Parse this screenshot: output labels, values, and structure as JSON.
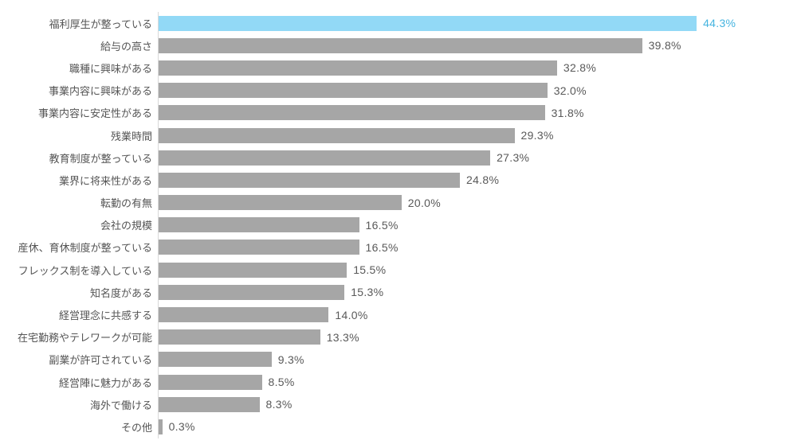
{
  "chart_data": {
    "type": "bar",
    "orientation": "horizontal",
    "title": "",
    "xlabel": "",
    "ylabel": "",
    "grid": false,
    "legend": "none",
    "xlim": [
      0,
      52
    ],
    "categories": [
      "福利厚生が整っている",
      "給与の高さ",
      "職種に興味がある",
      "事業内容に興味がある",
      "事業内容に安定性がある",
      "残業時間",
      "教育制度が整っている",
      "業界に将来性がある",
      "転勤の有無",
      "会社の規模",
      "産休、育休制度が整っている",
      "フレックス制を導入している",
      "知名度がある",
      "経営理念に共感する",
      "在宅勤務やテレワークが可能",
      "副業が許可されている",
      "経営陣に魅力がある",
      "海外で働ける",
      "その他"
    ],
    "values": [
      44.3,
      39.8,
      32.8,
      32.0,
      31.8,
      29.3,
      27.3,
      24.8,
      20.0,
      16.5,
      16.5,
      15.5,
      15.3,
      14.0,
      13.3,
      9.3,
      8.5,
      8.3,
      0.3
    ],
    "value_labels": [
      "44.3%",
      "39.8%",
      "32.8%",
      "32.0%",
      "31.8%",
      "29.3%",
      "27.3%",
      "24.8%",
      "20.0%",
      "16.5%",
      "16.5%",
      "15.5%",
      "15.3%",
      "14.0%",
      "13.3%",
      "9.3%",
      "8.5%",
      "8.3%",
      "0.3%"
    ],
    "highlight_index": 0,
    "colors": {
      "bar": "#a6a6a6",
      "highlight_bar": "#92d9f6",
      "value_text": "#595959",
      "highlight_value_text": "#45b4e0",
      "label_text": "#555555",
      "axis_line": "#d9d9d9"
    }
  }
}
